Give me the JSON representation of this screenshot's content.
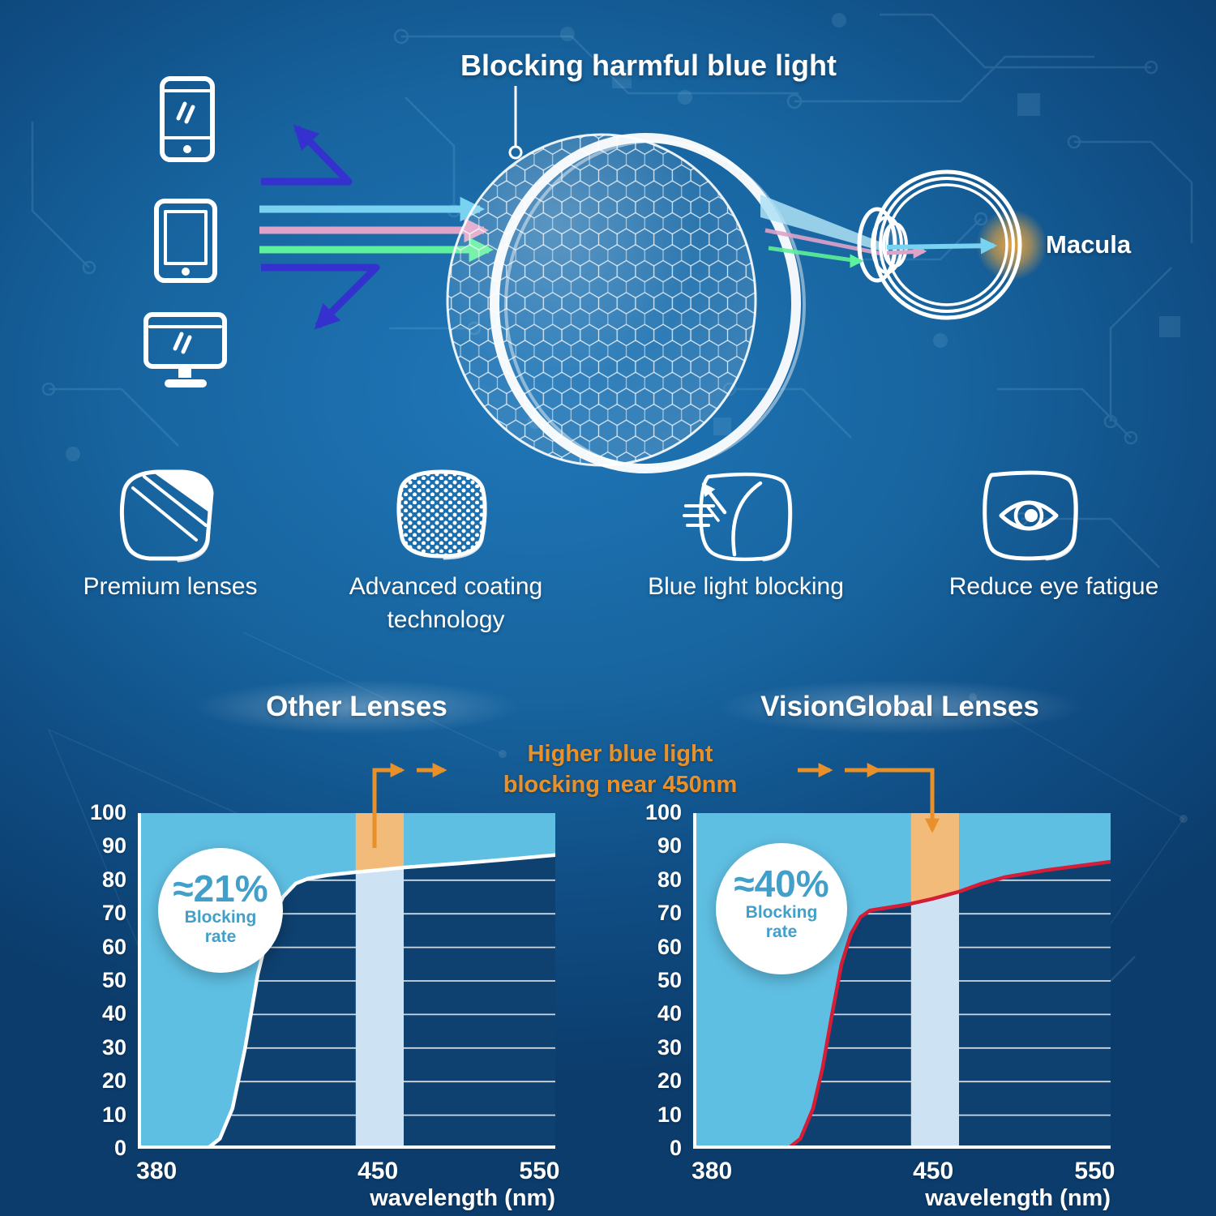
{
  "diagram": {
    "title": "Blocking harmful blue light",
    "macula_label": "Macula",
    "icons": [
      "smartphone-icon",
      "tablet-icon",
      "monitor-icon",
      "honeycomb-lens-graphic",
      "eye-diagram",
      "macula-glow"
    ]
  },
  "features": [
    {
      "icon": "premium-lens-icon",
      "label": "Premium lenses"
    },
    {
      "icon": "coating-technology-icon",
      "label": "Advanced coating technology"
    },
    {
      "icon": "blue-light-blocking-icon",
      "label": "Blue light blocking"
    },
    {
      "icon": "reduce-eye-fatigue-icon",
      "label": "Reduce eye fatigue"
    }
  ],
  "comparison": {
    "left_title": "Other Lenses",
    "right_title": "VisionGlobal Lenses",
    "annotation_line1": "Higher blue light",
    "annotation_line2": "blocking near 450nm"
  },
  "chart_data": [
    {
      "type": "area",
      "title": "Other Lenses",
      "badge_value": "≈21%",
      "badge_label_line1": "Blocking",
      "badge_label_line2": "rate",
      "xlabel": "wavelength (nm)",
      "x_ticks": [
        "380",
        "450",
        "550"
      ],
      "y_ticks": [
        0,
        10,
        20,
        30,
        40,
        50,
        60,
        70,
        80,
        90,
        100
      ],
      "ylim": [
        0,
        100
      ],
      "grid": true,
      "curve_color": "#ffffff",
      "highlight_band_nm": [
        443,
        466
      ],
      "x_scale_anchors": [
        [
          380,
          0.045
        ],
        [
          450,
          0.575
        ],
        [
          550,
          0.962
        ],
        [
          560,
          1.0
        ]
      ],
      "curve_points": [
        [
          380,
          0
        ],
        [
          396,
          0
        ],
        [
          400,
          3
        ],
        [
          404,
          12
        ],
        [
          408,
          30
        ],
        [
          412,
          52
        ],
        [
          416,
          67
        ],
        [
          420,
          75
        ],
        [
          424,
          79
        ],
        [
          428,
          80.5
        ],
        [
          434,
          81.5
        ],
        [
          442,
          82.3
        ],
        [
          450,
          83
        ],
        [
          466,
          83.8
        ],
        [
          500,
          85
        ],
        [
          530,
          86.2
        ],
        [
          560,
          87.5
        ]
      ],
      "legend_note": "light area above transmission curve = blocked light"
    },
    {
      "type": "area",
      "title": "VisionGlobal Lenses",
      "badge_value": "≈40%",
      "badge_label_line1": "Blocking",
      "badge_label_line2": "rate",
      "xlabel": "wavelength (nm)",
      "x_ticks": [
        "380",
        "450",
        "550"
      ],
      "y_ticks": [
        0,
        10,
        20,
        30,
        40,
        50,
        60,
        70,
        80,
        90,
        100
      ],
      "ylim": [
        0,
        100
      ],
      "grid": true,
      "curve_color": "#d41e38",
      "highlight_band_nm": [
        443,
        466
      ],
      "x_scale_anchors": [
        [
          380,
          0.045
        ],
        [
          450,
          0.575
        ],
        [
          550,
          0.962
        ],
        [
          560,
          1.0
        ]
      ],
      "curve_points": [
        [
          380,
          0
        ],
        [
          404,
          0
        ],
        [
          408,
          3
        ],
        [
          412,
          12
        ],
        [
          415,
          24
        ],
        [
          418,
          40
        ],
        [
          421,
          55
        ],
        [
          424,
          64
        ],
        [
          427,
          69
        ],
        [
          430,
          71
        ],
        [
          434,
          71.6
        ],
        [
          442,
          72.8
        ],
        [
          450,
          74.5
        ],
        [
          466,
          76.6
        ],
        [
          480,
          79
        ],
        [
          495,
          81
        ],
        [
          520,
          83
        ],
        [
          560,
          85.5
        ]
      ],
      "legend_note": "light area above transmission curve = blocked light"
    }
  ],
  "colors": {
    "background_center": "#2077b8",
    "background_edge": "#0b3c6c",
    "plot_bg": "#0e4070",
    "blocked_fill": "#5fbfe3",
    "band_under_fill": "#cde2f3",
    "band_over_fill": "#f3bb79",
    "annotation_orange": "#e8912b",
    "badge_text": "#429fc9",
    "ray_cyan": "#79d2f0",
    "ray_pink": "#dfa3c8",
    "ray_green": "#5ef09a",
    "ray_reflected_blue": "#3531cf",
    "macula_glow": "#f5a93b"
  }
}
